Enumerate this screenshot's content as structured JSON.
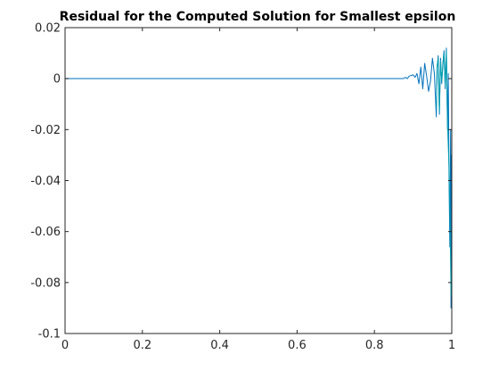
{
  "chart_data": {
    "type": "line",
    "title": "Residual for the Computed Solution for Smallest epsilon",
    "xlabel": "",
    "ylabel": "",
    "xlim": [
      0,
      1
    ],
    "ylim": [
      -0.1,
      0.02
    ],
    "xticks": [
      "0",
      "0.2",
      "0.4",
      "0.6",
      "0.8",
      "1"
    ],
    "yticks": [
      "0.02",
      "0",
      "-0.02",
      "-0.04",
      "-0.06",
      "-0.08",
      "-0.1"
    ],
    "grid": false,
    "legend": "none",
    "series": [
      {
        "color": "#0072bd",
        "x": [
          0,
          0.85,
          0.875,
          0.88,
          0.885,
          0.89,
          0.9,
          0.905,
          0.91,
          0.915,
          0.92,
          0.925,
          0.93,
          0.935,
          0.94,
          0.945,
          0.95,
          0.955,
          0.96,
          0.962,
          0.965,
          0.968,
          0.971,
          0.974,
          0.977,
          0.98,
          0.983,
          0.986,
          0.989,
          0.991,
          0.993,
          0.995,
          0.997,
          0.998,
          0.999,
          1
        ],
        "y": [
          0,
          0,
          0,
          0.0005,
          0,
          0.001,
          0.0015,
          0.0005,
          0.002,
          -0.002,
          0.0045,
          -0.004,
          0.006,
          0.001,
          -0.005,
          -0.001,
          0.008,
          0.002,
          -0.015,
          0.004,
          0.009,
          -0.014,
          0.008,
          -0.002,
          0.006,
          0.011,
          -0.004,
          0.012,
          -0.02,
          0.002,
          -0.04,
          -0.066,
          -0.02,
          -0.09,
          -0.03,
          -0.082
        ]
      },
      {
        "color": "#00a0b0",
        "x": [
          0.96,
          0.962,
          0.965,
          0.968,
          0.971,
          0.974,
          0.977,
          0.98,
          0.983,
          0.986,
          0.989,
          0.993,
          0.996,
          0.998,
          1
        ],
        "y": [
          -0.012,
          0.005,
          0.008,
          -0.013,
          0.007,
          -0.001,
          0.005,
          0.01,
          -0.003,
          0.011,
          -0.018,
          -0.035,
          -0.06,
          -0.085,
          -0.075
        ]
      }
    ]
  }
}
